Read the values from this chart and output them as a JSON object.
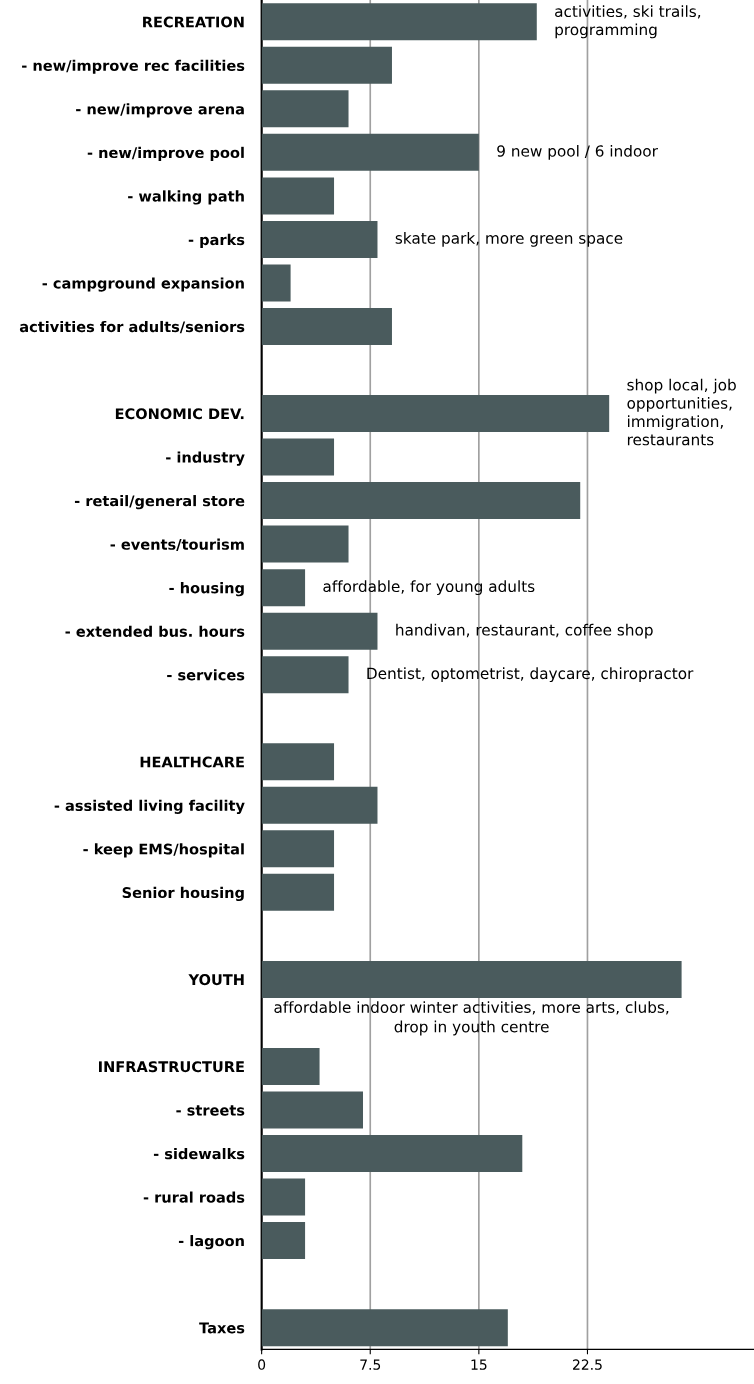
{
  "chart_data": {
    "type": "bar",
    "orientation": "horizontal",
    "color": "#4a5b5d",
    "categories": [
      "RECREATION",
      "- new/improve rec facilities",
      "- new/improve arena",
      "- new/improve pool",
      "- walking path",
      "- parks",
      "- campground expansion",
      "activities for adults/seniors",
      null,
      "ECONOMIC DEV.",
      "- industry",
      "- retail/general store",
      "- events/tourism",
      "- housing",
      "- extended bus. hours",
      "- services",
      null,
      "HEALTHCARE",
      "- assisted living facility",
      "- keep EMS/hospital",
      "Senior housing",
      null,
      "YOUTH",
      null,
      "INFRASTRUCTURE",
      "- streets",
      "- sidewalks",
      "- rural roads",
      "- lagoon",
      null,
      "Taxes"
    ],
    "values": [
      19,
      9,
      6,
      15,
      5,
      8,
      2,
      9,
      null,
      24,
      5,
      22,
      6,
      3,
      8,
      6,
      null,
      5,
      8,
      5,
      5,
      null,
      29,
      null,
      4,
      7,
      18,
      3,
      3,
      null,
      17
    ],
    "xlim": [
      0,
      34
    ],
    "xticks": [
      0,
      7.5,
      15,
      22.5
    ],
    "grid": "x",
    "annotations": [
      {
        "text": "activities, ski trails,\nprogramming",
        "x": 19,
        "y": "RECREATION"
      },
      {
        "text": "9 new pool / 6 indoor",
        "x": 15,
        "y": "- new/improve pool"
      },
      {
        "text": "skate park, more green space",
        "x": 8,
        "y": "- parks"
      },
      {
        "text": "shop local, job\nopportunities,\nimmigration,\nrestaurants",
        "x": 24,
        "y": "ECONOMIC DEV."
      },
      {
        "text": "affordable, for young adults",
        "x": 3,
        "y": "- housing"
      },
      {
        "text": "handivan, restaurant, coffee shop",
        "x": 8,
        "y": "- extended bus. hours"
      },
      {
        "text": "Dentist, optometrist, daycare, chiropractor",
        "x": 6,
        "y": "- services"
      },
      {
        "text": "affordable indoor winter activities, more arts, clubs,\ndrop in youth centre",
        "x": 29,
        "y": "YOUTH"
      }
    ]
  }
}
